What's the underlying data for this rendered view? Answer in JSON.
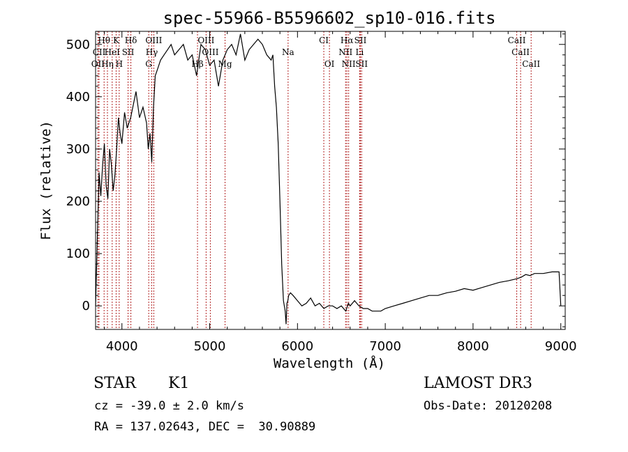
{
  "chart_data": {
    "type": "line",
    "title": "spec-55966-B5596602_sp10-016.fits",
    "xlabel": "Wavelength (Å)",
    "ylabel": "Flux (relative)",
    "xlim": [
      3700,
      9050
    ],
    "ylim": [
      -45,
      525
    ],
    "xticks": [
      4000,
      5000,
      6000,
      7000,
      8000,
      9000
    ],
    "yticks": [
      0,
      100,
      200,
      300,
      400,
      500
    ],
    "grid": false,
    "line_color": "#000000",
    "marker_color": "#b22222",
    "series": [
      {
        "name": "spectrum",
        "x": [
          3700,
          3720,
          3740,
          3760,
          3780,
          3800,
          3820,
          3840,
          3860,
          3880,
          3900,
          3920,
          3940,
          3960,
          3980,
          4000,
          4030,
          4060,
          4100,
          4130,
          4160,
          4200,
          4240,
          4280,
          4300,
          4320,
          4340,
          4360,
          4380,
          4400,
          4440,
          4480,
          4520,
          4560,
          4600,
          4650,
          4700,
          4750,
          4800,
          4850,
          4900,
          4950,
          5000,
          5050,
          5100,
          5150,
          5200,
          5250,
          5300,
          5350,
          5400,
          5450,
          5500,
          5550,
          5600,
          5650,
          5700,
          5720,
          5740,
          5760,
          5780,
          5800,
          5820,
          5840,
          5860,
          5870,
          5880,
          5890,
          5900,
          5920,
          5950,
          6000,
          6050,
          6100,
          6150,
          6200,
          6250,
          6300,
          6350,
          6400,
          6450,
          6500,
          6550,
          6580,
          6600,
          6650,
          6700,
          6750,
          6800,
          6850,
          6900,
          6950,
          7000,
          7100,
          7200,
          7300,
          7400,
          7500,
          7600,
          7700,
          7800,
          7900,
          8000,
          8100,
          8200,
          8300,
          8400,
          8500,
          8550,
          8600,
          8650,
          8700,
          8800,
          8900,
          8980,
          9000
        ],
        "y": [
          0,
          130,
          255,
          210,
          270,
          310,
          230,
          205,
          300,
          270,
          220,
          250,
          300,
          360,
          330,
          310,
          370,
          340,
          360,
          385,
          410,
          360,
          380,
          350,
          300,
          330,
          275,
          380,
          440,
          450,
          470,
          480,
          490,
          500,
          480,
          490,
          500,
          470,
          480,
          440,
          500,
          490,
          460,
          470,
          420,
          470,
          490,
          500,
          480,
          520,
          470,
          490,
          500,
          510,
          500,
          480,
          470,
          480,
          420,
          380,
          310,
          200,
          80,
          10,
          -10,
          -35,
          5,
          10,
          20,
          25,
          20,
          10,
          0,
          5,
          15,
          0,
          5,
          -5,
          0,
          0,
          -5,
          0,
          -10,
          5,
          0,
          10,
          0,
          -5,
          -5,
          -10,
          -10,
          -10,
          -5,
          0,
          5,
          10,
          15,
          20,
          20,
          25,
          28,
          33,
          30,
          35,
          40,
          45,
          48,
          52,
          55,
          60,
          58,
          62,
          62,
          65,
          65,
          0
        ]
      }
    ],
    "lines_top_row": [
      {
        "label": "Hθ",
        "wavelength": 3797
      },
      {
        "label": "K",
        "wavelength": 3934
      },
      {
        "label": "Hδ",
        "wavelength": 4102
      },
      {
        "label": "OIII",
        "wavelength": 4363
      },
      {
        "label": "OIII",
        "wavelength": 4959
      },
      {
        "label": "CI",
        "wavelength": 6300
      },
      {
        "label": "Hα",
        "wavelength": 6563
      },
      {
        "label": "SII",
        "wavelength": 6717
      },
      {
        "label": "CaII",
        "wavelength": 8498
      }
    ],
    "lines_middle_row": [
      {
        "label": "CII",
        "wavelength": 3740
      },
      {
        "label": "HeI",
        "wavelength": 3889
      },
      {
        "label": "SII",
        "wavelength": 4070
      },
      {
        "label": "Hγ",
        "wavelength": 4340
      },
      {
        "label": "OIII",
        "wavelength": 5007
      },
      {
        "label": "Na",
        "wavelength": 5893
      },
      {
        "label": "NII",
        "wavelength": 6548
      },
      {
        "label": "Li",
        "wavelength": 6708
      },
      {
        "label": "CaII",
        "wavelength": 8542
      }
    ],
    "lines_bottom_row": [
      {
        "label": "OII",
        "wavelength": 3727
      },
      {
        "label": "Hη",
        "wavelength": 3835
      },
      {
        "label": "H",
        "wavelength": 3969
      },
      {
        "label": "G",
        "wavelength": 4305
      },
      {
        "label": "Hβ",
        "wavelength": 4861
      },
      {
        "label": "Mg",
        "wavelength": 5175
      },
      {
        "label": "OI",
        "wavelength": 6364
      },
      {
        "label": "NII",
        "wavelength": 6583
      },
      {
        "label": "SII",
        "wavelength": 6731
      },
      {
        "label": "CaII",
        "wavelength": 8662
      }
    ]
  },
  "info": {
    "object_class": "STAR",
    "subclass": "K1",
    "survey": "LAMOST DR3",
    "cz": "cz = -39.0 ± 2.0 km/s",
    "obs_date": "Obs-Date: 20120208",
    "coords": "RA = 137.02643, DEC =  30.90889"
  }
}
